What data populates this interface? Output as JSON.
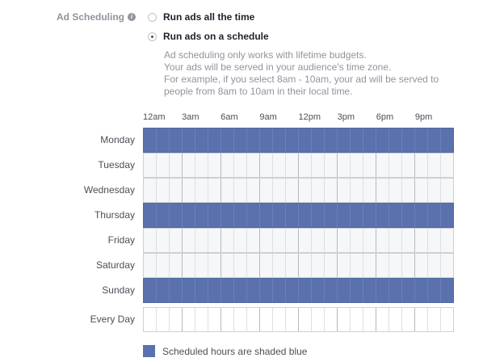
{
  "section_label": "Ad Scheduling",
  "info_icon_glyph": "i",
  "options": [
    {
      "label": "Run ads all the time",
      "checked": false
    },
    {
      "label": "Run ads on a schedule",
      "checked": true
    }
  ],
  "description": [
    "Ad scheduling only works with lifetime budgets.",
    "Your ads will be served in your audience's time zone.",
    "For example, if you select 8am - 10am, your ad will be served to",
    "people from 8am to 10am in their local time."
  ],
  "hour_labels": [
    "12am",
    "3am",
    "6am",
    "9am",
    "12pm",
    "3pm",
    "6pm",
    "9pm"
  ],
  "days": [
    {
      "label": "Monday",
      "scheduled": true
    },
    {
      "label": "Tuesday",
      "scheduled": false
    },
    {
      "label": "Wednesday",
      "scheduled": false
    },
    {
      "label": "Thursday",
      "scheduled": true
    },
    {
      "label": "Friday",
      "scheduled": false
    },
    {
      "label": "Saturday",
      "scheduled": false
    },
    {
      "label": "Sunday",
      "scheduled": true
    }
  ],
  "every_day_label": "Every Day",
  "legend_text": "Scheduled hours are shaded blue",
  "colors": {
    "scheduled": "#5b71ad",
    "unscheduled": "#f6f7f9"
  }
}
